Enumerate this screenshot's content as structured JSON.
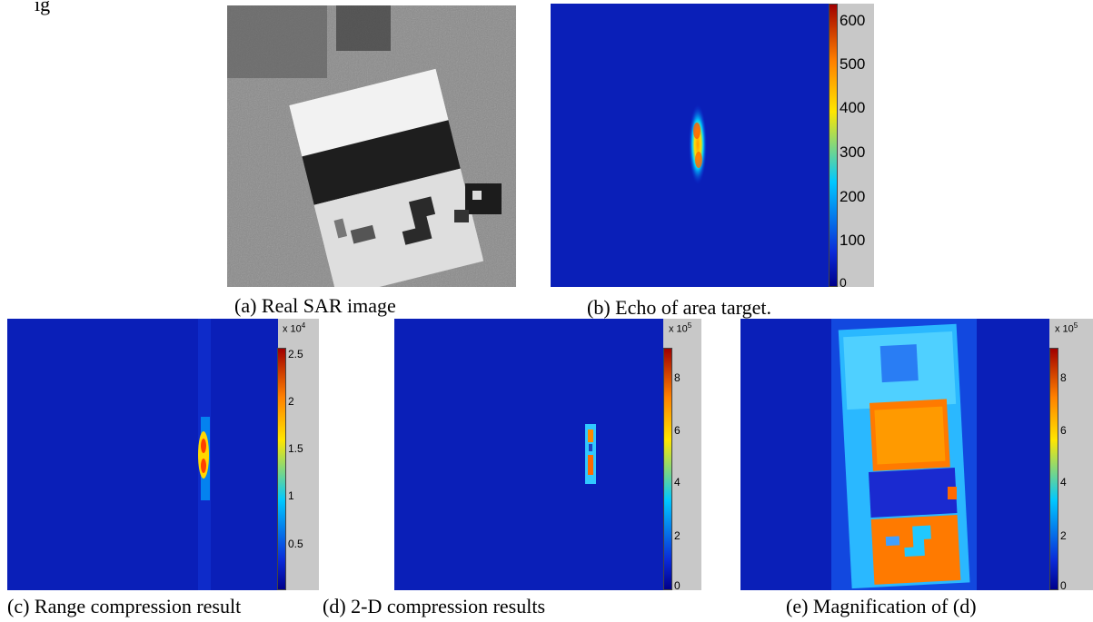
{
  "header_fragment": "ig",
  "colormap": {
    "dark_blue": "#00008b",
    "blue": "#0a2ad8",
    "cyan": "#00c8ff",
    "yellow": "#ffe600",
    "orange": "#ff8000",
    "red": "#a00000",
    "gray_bar": "#c8c8c8"
  },
  "panels": {
    "a": {
      "caption": "(a) Real SAR image"
    },
    "b": {
      "caption": "(b) Echo of area target.",
      "colorbar_ticks": [
        "600",
        "500",
        "400",
        "300",
        "200",
        "100",
        "0"
      ]
    },
    "c": {
      "caption": "(c) Range compression result",
      "colorbar_ticks": [
        "2.5",
        "2",
        "1.5",
        "1",
        "0.5"
      ],
      "exp_base": "x 10",
      "exp_power": "4"
    },
    "d": {
      "caption": "(d) 2-D compression results",
      "colorbar_ticks": [
        "8",
        "6",
        "4",
        "2",
        "0"
      ],
      "exp_base": "x 10",
      "exp_power": "5"
    },
    "e": {
      "caption": "(e) Magnification of (d)",
      "colorbar_ticks": [
        "8",
        "6",
        "4",
        "2",
        "0"
      ],
      "exp_base": "x 10",
      "exp_power": "5"
    }
  }
}
